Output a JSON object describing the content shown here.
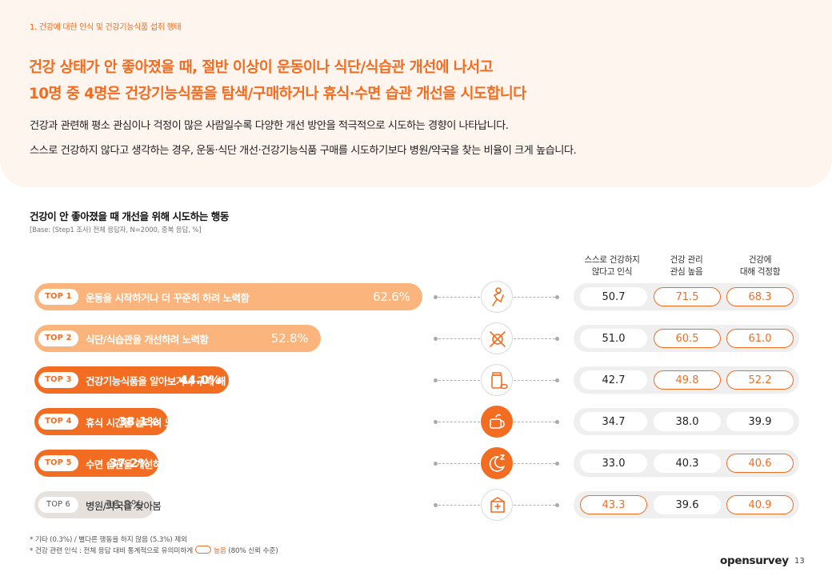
{
  "header": {
    "section_label": "1. 건강에 대한 인식 및 건강기능식품 섭취 행태",
    "headline_1": "건강 상태가 안 좋아졌을 때, 절반 이상이 운동이나 식단/식습관 개선에 나서고",
    "headline_2": "10명 중 4명은 건강기능식품을 탐색/구매하거나 휴식·수면 습관 개선을 시도합니다",
    "desc_1": "건강과 관련해 평소 관심이나 걱정이 많은 사람일수록 다양한 개선 방안을 적극적으로 시도하는 경향이 나타납니다.",
    "desc_2": "스스로 건강하지 않다고 생각하는 경우, 운동·식단 개선·건강기능식품 구매를 시도하기보다 병원/약국을 찾는 비율이 크게 높습니다."
  },
  "columns": {
    "c1_line1": "스스로 건강하지",
    "c1_line2": "않다고 인식",
    "c2_line1": "건강 관리",
    "c2_line2": "관심 높음",
    "c3_line1": "건강에",
    "c3_line2": "대해 걱정함"
  },
  "chart_data": {
    "type": "bar",
    "orientation": "horizontal",
    "title": "건강이 안 좋아졌을 때 개선을 위해 시도하는 행동",
    "base_note": "[Base: (Step1 조사) 전체 응답자, N=2000, 중복 응답, %]",
    "xlim": [
      0,
      100
    ],
    "unit": "%",
    "categories": [
      "운동을 시작하거나 더 꾸준히 하려 노력함",
      "식단/식습관을 개선하려 노력함",
      "건강기능식품을 알아보거나 구매 해 봄",
      "휴식 시간을 늘리려 노력함",
      "수면 습관을 개선하려 노력함",
      "병원/약국을 찾아봄"
    ],
    "ranks": [
      "TOP 1",
      "TOP 2",
      "TOP 3",
      "TOP 4",
      "TOP 5",
      "TOP 6"
    ],
    "values": [
      62.6,
      52.8,
      44.0,
      38.1,
      37.2,
      36.8
    ],
    "value_labels": [
      "62.6%",
      "52.8%",
      "44.0%",
      "38.1%",
      "37.2%",
      "36.8%"
    ],
    "bar_colors": [
      "#fbb57c",
      "#fbb57c",
      "#f26d21",
      "#f26d21",
      "#f26d21",
      "#e6e1dd"
    ],
    "icons": [
      "exercise-icon",
      "diet-icon",
      "supplement-icon",
      "rest-icon",
      "sleep-icon",
      "pharmacy-icon"
    ],
    "segments": [
      {
        "name": "스스로 건강하지 않다고 인식",
        "values": [
          "50.7",
          "51.0",
          "42.7",
          "34.7",
          "33.0",
          "43.3"
        ],
        "highlight": [
          false,
          false,
          false,
          false,
          false,
          true
        ]
      },
      {
        "name": "건강 관리 관심 높음",
        "values": [
          "71.5",
          "60.5",
          "49.8",
          "38.0",
          "40.3",
          "39.6"
        ],
        "highlight": [
          true,
          true,
          true,
          false,
          false,
          false
        ]
      },
      {
        "name": "건강에 대해 걱정함",
        "values": [
          "68.3",
          "61.0",
          "52.2",
          "39.9",
          "40.6",
          "40.9"
        ],
        "highlight": [
          true,
          true,
          true,
          false,
          true,
          true
        ]
      }
    ]
  },
  "footnotes": {
    "line_1": "* 기타 (0.3%) / 별다른 행동을 하지 않음 (5.3%) 제외",
    "line_2_prefix": "* 건강 관련 인식 : 전체 응답 대비 통계적으로 유의미하게",
    "line_2_highlight": "높음",
    "line_2_suffix": "(80% 신뢰 수준)"
  },
  "colors": {
    "accent": "#f26d21",
    "light_accent": "#fbb57c",
    "gray_bar": "#e6e1dd",
    "panel_bg": "#fdf5ee"
  },
  "footer": {
    "brand": "opensurvey",
    "page_number": "13"
  }
}
